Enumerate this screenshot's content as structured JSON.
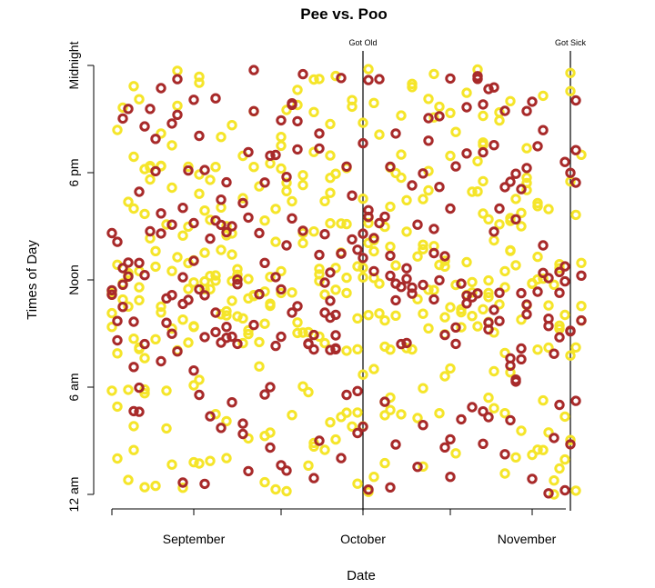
{
  "chart_data": {
    "type": "scatter",
    "title": "Pee vs. Poo",
    "xlabel": "Date",
    "ylabel": "Times of Day",
    "x_axis": {
      "type": "date",
      "range": [
        "2013-08-31",
        "2013-11-27"
      ],
      "tick_dates": [
        "2013-08-31",
        "2013-09-15",
        "2013-10-01",
        "2013-10-16",
        "2013-11-01",
        "2013-11-16"
      ],
      "labels": [
        {
          "text": "September",
          "date": "2013-09-15"
        },
        {
          "text": "October",
          "date": "2013-10-16"
        },
        {
          "text": "November",
          "date": "2013-11-15"
        }
      ]
    },
    "y_axis": {
      "range_hours": [
        0,
        24
      ],
      "ticks": [
        {
          "hour": 0,
          "label": "12 am"
        },
        {
          "hour": 6,
          "label": "6 am"
        },
        {
          "hour": 12,
          "label": "Noon"
        },
        {
          "hour": 18,
          "label": "6 pm"
        },
        {
          "hour": 24,
          "label": "Midnight"
        }
      ]
    },
    "annotations": [
      {
        "date": "2013-10-16",
        "label": "Got Old"
      },
      {
        "date": "2013-11-23",
        "label": "Got Sick"
      }
    ],
    "grid": false,
    "legend": "none",
    "series": [
      {
        "color": "#f5e52a",
        "marker": "ring",
        "points": []
      },
      {
        "color": "#a82a2a",
        "marker": "ring",
        "points": []
      }
    ]
  }
}
